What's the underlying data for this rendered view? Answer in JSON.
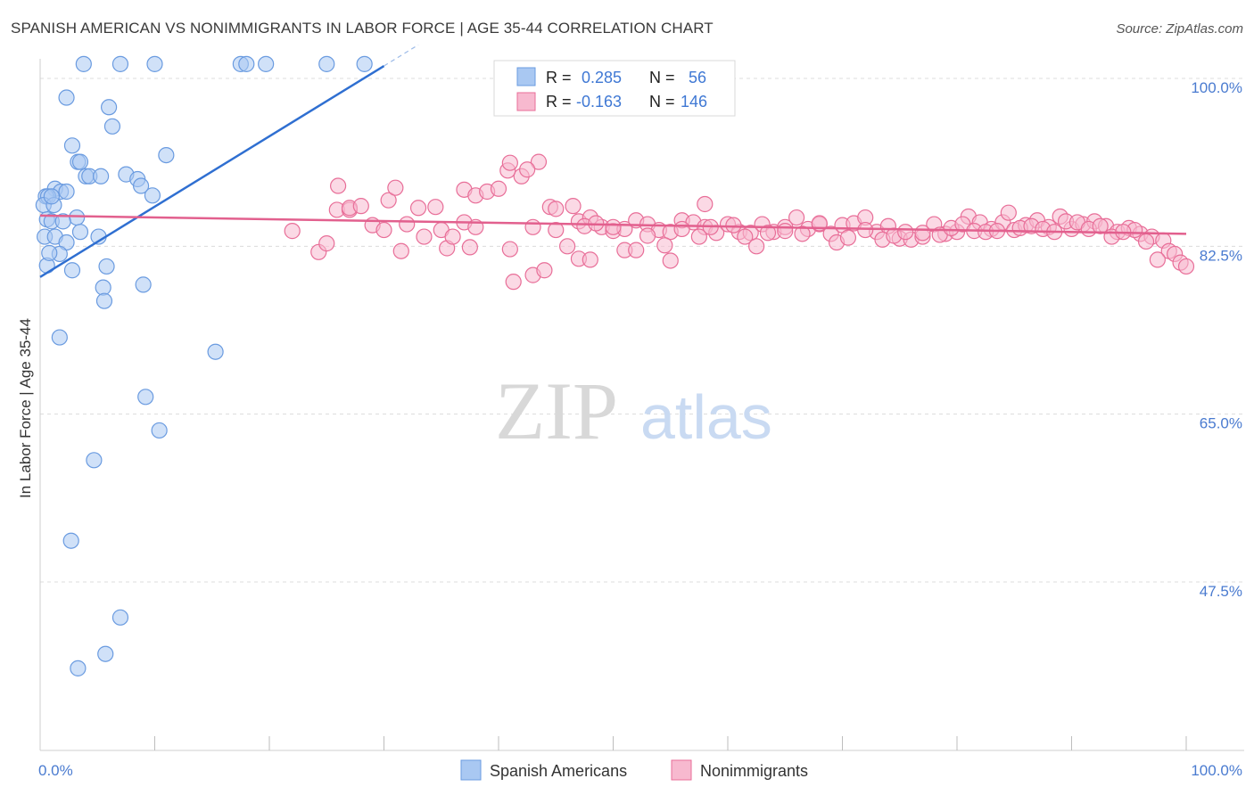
{
  "chart_data": {
    "type": "scatter",
    "title": "SPANISH AMERICAN VS NONIMMIGRANTS IN LABOR FORCE | AGE 35-44 CORRELATION CHART",
    "source": "Source: ZipAtlas.com",
    "ylabel": "In Labor Force | Age 35-44",
    "xlabel": "",
    "xlim": [
      0,
      100
    ],
    "ylim": [
      30,
      102
    ],
    "x_tick_labels": [
      "0.0%",
      "100.0%"
    ],
    "y_ticks": [
      {
        "value": 100.0,
        "label": "100.0%"
      },
      {
        "value": 82.5,
        "label": "82.5%"
      },
      {
        "value": 65.0,
        "label": "65.0%"
      },
      {
        "value": 47.5,
        "label": "47.5%"
      }
    ],
    "watermark": "ZIPatlas",
    "legend_stats": [
      {
        "r_label": "R =",
        "r": "0.285",
        "n_label": "N =",
        "n": "56"
      },
      {
        "r_label": "R =",
        "r": "-0.163",
        "n_label": "N =",
        "n": "146"
      }
    ],
    "series": [
      {
        "name": "Spanish Americans",
        "color": "#6a9be0",
        "fill": "#a9c8f2",
        "trend": {
          "x": [
            0,
            30
          ],
          "y": [
            79.3,
            101.3
          ],
          "dash_to": 33
        },
        "points": [
          [
            3.8,
            101.5
          ],
          [
            7.0,
            101.5
          ],
          [
            10.0,
            101.5
          ],
          [
            17.5,
            101.5
          ],
          [
            18.0,
            101.5
          ],
          [
            19.7,
            101.5
          ],
          [
            25.0,
            101.5
          ],
          [
            28.3,
            101.5
          ],
          [
            2.3,
            98.0
          ],
          [
            6.0,
            97.0
          ],
          [
            6.3,
            95.0
          ],
          [
            2.8,
            93.0
          ],
          [
            11.0,
            92.0
          ],
          [
            3.3,
            91.3
          ],
          [
            3.5,
            91.3
          ],
          [
            4.0,
            89.8
          ],
          [
            4.3,
            89.8
          ],
          [
            5.3,
            89.8
          ],
          [
            7.5,
            90.0
          ],
          [
            8.5,
            89.5
          ],
          [
            8.8,
            88.8
          ],
          [
            1.3,
            88.5
          ],
          [
            1.8,
            88.2
          ],
          [
            2.3,
            88.2
          ],
          [
            0.5,
            87.7
          ],
          [
            0.7,
            87.7
          ],
          [
            9.8,
            87.8
          ],
          [
            0.3,
            86.8
          ],
          [
            1.2,
            86.8
          ],
          [
            0.6,
            85.3
          ],
          [
            3.2,
            85.5
          ],
          [
            1.0,
            85.1
          ],
          [
            2.0,
            85.1
          ],
          [
            0.4,
            83.5
          ],
          [
            1.3,
            83.5
          ],
          [
            3.5,
            84.0
          ],
          [
            5.1,
            83.5
          ],
          [
            2.3,
            82.9
          ],
          [
            1.7,
            81.7
          ],
          [
            0.6,
            80.5
          ],
          [
            5.8,
            80.4
          ],
          [
            2.8,
            80.0
          ],
          [
            9.0,
            78.5
          ],
          [
            5.5,
            78.2
          ],
          [
            5.6,
            76.8
          ],
          [
            1.7,
            73.0
          ],
          [
            15.3,
            71.5
          ],
          [
            9.2,
            66.8
          ],
          [
            10.4,
            63.3
          ],
          [
            4.7,
            60.2
          ],
          [
            2.7,
            51.8
          ],
          [
            7.0,
            43.8
          ],
          [
            5.7,
            40.0
          ],
          [
            3.3,
            38.5
          ],
          [
            0.8,
            81.8
          ],
          [
            1.0,
            87.7
          ]
        ]
      },
      {
        "name": "Nonimmigrants",
        "color": "#e86e98",
        "fill": "#f7b9cf",
        "trend": {
          "x": [
            0,
            100
          ],
          "y": [
            85.7,
            83.8
          ]
        },
        "points": [
          [
            30.4,
            87.3
          ],
          [
            25.9,
            86.3
          ],
          [
            27.0,
            86.3
          ],
          [
            31.0,
            88.6
          ],
          [
            33.0,
            86.5
          ],
          [
            37.0,
            88.4
          ],
          [
            38.0,
            87.8
          ],
          [
            39.0,
            88.2
          ],
          [
            40.0,
            88.5
          ],
          [
            37.0,
            85.0
          ],
          [
            38.0,
            84.5
          ],
          [
            35.0,
            84.2
          ],
          [
            43.0,
            84.5
          ],
          [
            45.0,
            84.2
          ],
          [
            44.5,
            86.6
          ],
          [
            42.0,
            89.8
          ],
          [
            43.5,
            91.3
          ],
          [
            40.8,
            90.4
          ],
          [
            41.0,
            91.2
          ],
          [
            42.5,
            90.5
          ],
          [
            46.0,
            82.5
          ],
          [
            47.0,
            85.1
          ],
          [
            48.0,
            85.5
          ],
          [
            49.0,
            84.5
          ],
          [
            50.0,
            84.1
          ],
          [
            51.0,
            84.3
          ],
          [
            52.0,
            85.2
          ],
          [
            53.0,
            84.8
          ],
          [
            54.0,
            84.2
          ],
          [
            55.0,
            84.0
          ],
          [
            56.0,
            85.2
          ],
          [
            57.0,
            85.0
          ],
          [
            58.0,
            84.5
          ],
          [
            59.0,
            83.9
          ],
          [
            60.0,
            84.8
          ],
          [
            61.0,
            84.0
          ],
          [
            62.0,
            83.9
          ],
          [
            63.0,
            84.8
          ],
          [
            64.0,
            84.0
          ],
          [
            65.0,
            84.5
          ],
          [
            66.0,
            85.5
          ],
          [
            67.0,
            84.3
          ],
          [
            68.0,
            84.8
          ],
          [
            69.0,
            83.8
          ],
          [
            70.0,
            84.7
          ],
          [
            71.0,
            84.9
          ],
          [
            72.0,
            85.5
          ],
          [
            73.0,
            84.0
          ],
          [
            74.0,
            84.6
          ],
          [
            75.0,
            83.3
          ],
          [
            76.0,
            83.2
          ],
          [
            77.0,
            83.5
          ],
          [
            78.0,
            84.8
          ],
          [
            79.0,
            83.8
          ],
          [
            80.0,
            84.0
          ],
          [
            81.0,
            85.6
          ],
          [
            82.0,
            85.0
          ],
          [
            83.0,
            84.3
          ],
          [
            84.0,
            85.0
          ],
          [
            85.0,
            84.2
          ],
          [
            86.0,
            84.7
          ],
          [
            87.0,
            85.2
          ],
          [
            88.0,
            84.5
          ],
          [
            89.0,
            85.6
          ],
          [
            90.0,
            84.3
          ],
          [
            91.0,
            84.8
          ],
          [
            92.0,
            85.1
          ],
          [
            93.0,
            84.6
          ],
          [
            94.0,
            84.0
          ],
          [
            95.0,
            84.4
          ],
          [
            96.0,
            83.8
          ],
          [
            97.0,
            83.5
          ],
          [
            98.0,
            83.1
          ],
          [
            98.5,
            82.0
          ],
          [
            99.0,
            81.7
          ],
          [
            99.5,
            80.8
          ],
          [
            100.0,
            80.4
          ],
          [
            97.5,
            81.1
          ],
          [
            96.5,
            83.0
          ],
          [
            95.5,
            84.2
          ],
          [
            22.0,
            84.1
          ],
          [
            24.3,
            81.9
          ],
          [
            25.0,
            82.8
          ],
          [
            26.0,
            88.8
          ],
          [
            27.0,
            86.5
          ],
          [
            28.0,
            86.7
          ],
          [
            29.0,
            84.7
          ],
          [
            31.5,
            82.0
          ],
          [
            33.5,
            83.5
          ],
          [
            35.5,
            82.3
          ],
          [
            36.0,
            83.5
          ],
          [
            37.5,
            82.4
          ],
          [
            41.0,
            82.2
          ],
          [
            41.3,
            78.8
          ],
          [
            43.0,
            79.5
          ],
          [
            44.0,
            80.0
          ],
          [
            45.0,
            86.4
          ],
          [
            46.5,
            86.7
          ],
          [
            47.5,
            84.6
          ],
          [
            48.5,
            84.9
          ],
          [
            50.0,
            84.5
          ],
          [
            51.0,
            82.1
          ],
          [
            52.0,
            82.1
          ],
          [
            53.0,
            83.6
          ],
          [
            54.5,
            82.6
          ],
          [
            56.0,
            84.3
          ],
          [
            57.5,
            83.5
          ],
          [
            58.5,
            84.5
          ],
          [
            60.5,
            84.7
          ],
          [
            61.5,
            83.5
          ],
          [
            62.5,
            82.5
          ],
          [
            63.5,
            83.9
          ],
          [
            65.0,
            84.1
          ],
          [
            66.5,
            83.8
          ],
          [
            68.0,
            84.9
          ],
          [
            69.5,
            82.9
          ],
          [
            70.5,
            83.4
          ],
          [
            72.0,
            84.2
          ],
          [
            73.5,
            83.2
          ],
          [
            74.5,
            83.6
          ],
          [
            75.5,
            84.0
          ],
          [
            77.0,
            83.9
          ],
          [
            78.5,
            83.7
          ],
          [
            79.5,
            84.4
          ],
          [
            80.5,
            84.8
          ],
          [
            81.5,
            84.1
          ],
          [
            82.5,
            84.0
          ],
          [
            83.5,
            84.1
          ],
          [
            84.5,
            86.0
          ],
          [
            85.5,
            84.4
          ],
          [
            86.5,
            84.6
          ],
          [
            87.5,
            84.3
          ],
          [
            88.5,
            84.0
          ],
          [
            89.5,
            85.1
          ],
          [
            90.5,
            85.0
          ],
          [
            91.5,
            84.3
          ],
          [
            92.5,
            84.6
          ],
          [
            93.5,
            83.5
          ],
          [
            94.5,
            84.0
          ],
          [
            55.0,
            81.0
          ],
          [
            47.0,
            81.2
          ],
          [
            48.0,
            81.1
          ],
          [
            30.0,
            84.2
          ],
          [
            32.0,
            84.8
          ],
          [
            34.5,
            86.6
          ],
          [
            58.0,
            86.9
          ]
        ]
      }
    ]
  }
}
